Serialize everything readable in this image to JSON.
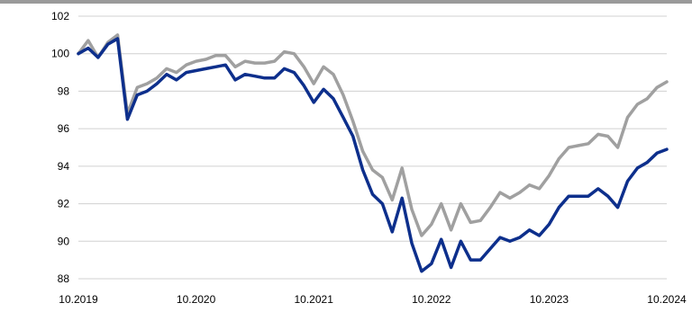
{
  "chart_data": {
    "type": "line",
    "title": "",
    "xlabel": "",
    "ylabel": "",
    "ylim": [
      88,
      102
    ],
    "yticks": [
      88,
      90,
      92,
      94,
      96,
      98,
      100,
      102
    ],
    "x_tick_labels": [
      "10.2019",
      "10.2020",
      "10.2021",
      "10.2022",
      "10.2023",
      "10.2024"
    ],
    "x_range": [
      "2019-10",
      "2024-10"
    ],
    "grid": "horizontal",
    "colors": {
      "series_dark": "#0d2f8c",
      "series_gray": "#a0a0a0",
      "grid": "#d0d0d0",
      "top_rule": "#9a9a9a"
    },
    "series": [
      {
        "color": "#a0a0a0",
        "points": [
          [
            "2019-10",
            100.0
          ],
          [
            "2019-11",
            100.7
          ],
          [
            "2019-12",
            99.8
          ],
          [
            "2020-01",
            100.6
          ],
          [
            "2020-02",
            101.0
          ],
          [
            "2020-03",
            96.8
          ],
          [
            "2020-04",
            98.2
          ],
          [
            "2020-05",
            98.4
          ],
          [
            "2020-06",
            98.7
          ],
          [
            "2020-07",
            99.2
          ],
          [
            "2020-08",
            99.0
          ],
          [
            "2020-09",
            99.4
          ],
          [
            "2020-10",
            99.6
          ],
          [
            "2020-11",
            99.7
          ],
          [
            "2020-12",
            99.9
          ],
          [
            "2021-01",
            99.9
          ],
          [
            "2021-02",
            99.3
          ],
          [
            "2021-03",
            99.6
          ],
          [
            "2021-04",
            99.5
          ],
          [
            "2021-05",
            99.5
          ],
          [
            "2021-06",
            99.6
          ],
          [
            "2021-07",
            100.1
          ],
          [
            "2021-08",
            100.0
          ],
          [
            "2021-09",
            99.3
          ],
          [
            "2021-10",
            98.4
          ],
          [
            "2021-11",
            99.3
          ],
          [
            "2021-12",
            98.9
          ],
          [
            "2022-01",
            97.8
          ],
          [
            "2022-02",
            96.4
          ],
          [
            "2022-03",
            94.8
          ],
          [
            "2022-04",
            93.8
          ],
          [
            "2022-05",
            93.4
          ],
          [
            "2022-06",
            92.2
          ],
          [
            "2022-07",
            93.9
          ],
          [
            "2022-08",
            91.7
          ],
          [
            "2022-09",
            90.3
          ],
          [
            "2022-10",
            90.9
          ],
          [
            "2022-11",
            92.0
          ],
          [
            "2022-12",
            90.6
          ],
          [
            "2023-01",
            92.0
          ],
          [
            "2023-02",
            91.0
          ],
          [
            "2023-03",
            91.1
          ],
          [
            "2023-04",
            91.8
          ],
          [
            "2023-05",
            92.6
          ],
          [
            "2023-06",
            92.3
          ],
          [
            "2023-07",
            92.6
          ],
          [
            "2023-08",
            93.0
          ],
          [
            "2023-09",
            92.8
          ],
          [
            "2023-10",
            93.5
          ],
          [
            "2023-11",
            94.4
          ],
          [
            "2023-12",
            95.0
          ],
          [
            "2024-01",
            95.1
          ],
          [
            "2024-02",
            95.2
          ],
          [
            "2024-03",
            95.7
          ],
          [
            "2024-04",
            95.6
          ],
          [
            "2024-05",
            95.0
          ],
          [
            "2024-06",
            96.6
          ],
          [
            "2024-07",
            97.3
          ],
          [
            "2024-08",
            97.6
          ],
          [
            "2024-09",
            98.2
          ],
          [
            "2024-10",
            98.5
          ]
        ]
      },
      {
        "color": "#0d2f8c",
        "points": [
          [
            "2019-10",
            100.0
          ],
          [
            "2019-11",
            100.3
          ],
          [
            "2019-12",
            99.8
          ],
          [
            "2020-01",
            100.5
          ],
          [
            "2020-02",
            100.8
          ],
          [
            "2020-03",
            96.5
          ],
          [
            "2020-04",
            97.8
          ],
          [
            "2020-05",
            98.0
          ],
          [
            "2020-06",
            98.4
          ],
          [
            "2020-07",
            98.9
          ],
          [
            "2020-08",
            98.6
          ],
          [
            "2020-09",
            99.0
          ],
          [
            "2020-10",
            99.1
          ],
          [
            "2020-11",
            99.2
          ],
          [
            "2020-12",
            99.3
          ],
          [
            "2021-01",
            99.4
          ],
          [
            "2021-02",
            98.6
          ],
          [
            "2021-03",
            98.9
          ],
          [
            "2021-04",
            98.8
          ],
          [
            "2021-05",
            98.7
          ],
          [
            "2021-06",
            98.7
          ],
          [
            "2021-07",
            99.2
          ],
          [
            "2021-08",
            99.0
          ],
          [
            "2021-09",
            98.3
          ],
          [
            "2021-10",
            97.4
          ],
          [
            "2021-11",
            98.1
          ],
          [
            "2021-12",
            97.6
          ],
          [
            "2022-01",
            96.6
          ],
          [
            "2022-02",
            95.6
          ],
          [
            "2022-03",
            93.8
          ],
          [
            "2022-04",
            92.5
          ],
          [
            "2022-05",
            92.0
          ],
          [
            "2022-06",
            90.5
          ],
          [
            "2022-07",
            92.3
          ],
          [
            "2022-08",
            89.9
          ],
          [
            "2022-09",
            88.4
          ],
          [
            "2022-10",
            88.8
          ],
          [
            "2022-11",
            90.1
          ],
          [
            "2022-12",
            88.6
          ],
          [
            "2023-01",
            90.0
          ],
          [
            "2023-02",
            89.0
          ],
          [
            "2023-03",
            89.0
          ],
          [
            "2023-04",
            89.6
          ],
          [
            "2023-05",
            90.2
          ],
          [
            "2023-06",
            90.0
          ],
          [
            "2023-07",
            90.2
          ],
          [
            "2023-08",
            90.6
          ],
          [
            "2023-09",
            90.3
          ],
          [
            "2023-10",
            90.9
          ],
          [
            "2023-11",
            91.8
          ],
          [
            "2023-12",
            92.4
          ],
          [
            "2024-01",
            92.4
          ],
          [
            "2024-02",
            92.4
          ],
          [
            "2024-03",
            92.8
          ],
          [
            "2024-04",
            92.4
          ],
          [
            "2024-05",
            91.8
          ],
          [
            "2024-06",
            93.2
          ],
          [
            "2024-07",
            93.9
          ],
          [
            "2024-08",
            94.2
          ],
          [
            "2024-09",
            94.7
          ],
          [
            "2024-10",
            94.9
          ]
        ]
      }
    ]
  }
}
